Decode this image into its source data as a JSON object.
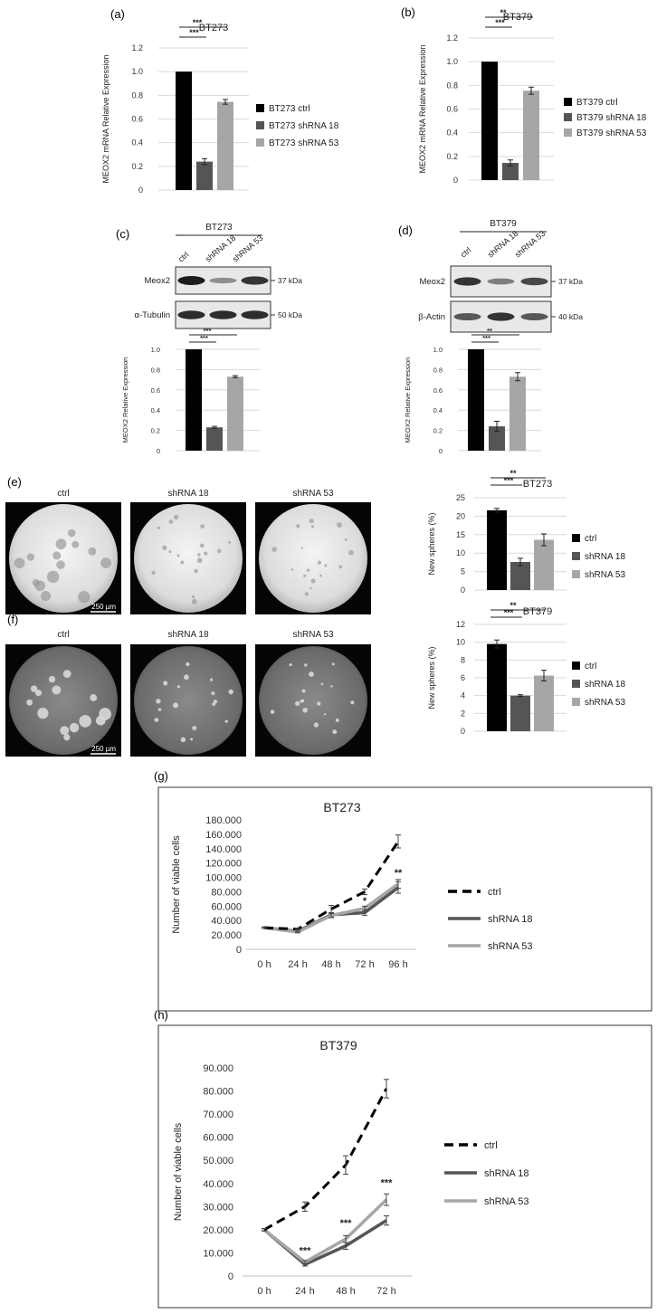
{
  "panels": {
    "a": "(a)",
    "b": "(b)",
    "c": "(c)",
    "d": "(d)",
    "e": "(e)",
    "f": "(f)",
    "g": "(g)",
    "h": "(h)"
  },
  "colors": {
    "ctrl": "#000000",
    "sh18": "#555555",
    "sh53": "#a6a6a6",
    "grid": "#d9d9d9",
    "axis": "#bfbfbf"
  },
  "blots": {
    "c": {
      "group": "BT273",
      "lanes": [
        "ctrl",
        "shRNA 18",
        "shRNA 53"
      ],
      "rows": [
        {
          "label": "Meox2",
          "kda": "37 kDa",
          "intensity": [
            1.0,
            0.25,
            0.85
          ]
        },
        {
          "label": "α-Tubulin",
          "kda": "50 kDa",
          "intensity": [
            0.9,
            0.9,
            0.9
          ]
        }
      ]
    },
    "d": {
      "group": "BT379",
      "lanes": [
        "ctrl",
        "shRNA 18",
        "shRNA 53"
      ],
      "rows": [
        {
          "label": "Meox2",
          "kda": "37 kDa",
          "intensity": [
            0.85,
            0.35,
            0.7
          ]
        },
        {
          "label": "β-Actin",
          "kda": "40 kDa",
          "intensity": [
            0.6,
            0.85,
            0.6
          ]
        }
      ]
    }
  },
  "images": {
    "e": {
      "labels": [
        "ctrl",
        "shRNA 18",
        "shRNA 53"
      ],
      "scale": "250 µm"
    },
    "f": {
      "labels": [
        "ctrl",
        "shRNA 18",
        "shRNA 53"
      ],
      "scale": "250 µm"
    }
  },
  "chart_data": [
    {
      "id": "a",
      "type": "bar",
      "title": "BT273",
      "ylabel": "MEOX2 mRNA Relative Expression",
      "ylim": [
        0,
        1.2
      ],
      "ticks": [
        "0",
        "0.2",
        "0.4",
        "0.6",
        "0.8",
        "1.0",
        "1.2"
      ],
      "categories": [
        "BT273 ctrl",
        "BT273 shRNA 18",
        "BT273 shRNA 53"
      ],
      "values": [
        1.0,
        0.24,
        0.745
      ],
      "errors": [
        0,
        0.025,
        0.02
      ],
      "legend": [
        "BT273 ctrl",
        "BT273 shRNA 18",
        "BT273 shRNA 53"
      ],
      "significance": [
        {
          "from": 0,
          "to": 1,
          "label": "***"
        },
        {
          "from": 0,
          "to": 2,
          "label": "***"
        }
      ]
    },
    {
      "id": "b",
      "type": "bar",
      "title": "BT379",
      "ylabel": "MEOX2 mRNA Relative Expression",
      "ylim": [
        0,
        1.2
      ],
      "ticks": [
        "0",
        "0.2",
        "0.4",
        "0.6",
        "0.8",
        "1.0",
        "1.2"
      ],
      "categories": [
        "BT379 ctrl",
        "BT379 shRNA 18",
        "BT379 shRNA 53"
      ],
      "values": [
        1.0,
        0.145,
        0.755
      ],
      "errors": [
        0,
        0.025,
        0.03
      ],
      "legend": [
        "BT379 ctrl",
        "BT379 shRNA 18",
        "BT379 shRNA 53"
      ],
      "significance": [
        {
          "from": 0,
          "to": 1,
          "label": "***"
        },
        {
          "from": 0,
          "to": 2,
          "label": "**"
        }
      ]
    },
    {
      "id": "c",
      "type": "bar",
      "title": "",
      "ylabel": "MEOX2 Relative Expression",
      "ylim": [
        0,
        1.0
      ],
      "ticks": [
        "0",
        "0.2",
        "0.4",
        "0.6",
        "0.8",
        "1.0"
      ],
      "categories": [
        "ctrl",
        "shRNA 18",
        "shRNA 53"
      ],
      "values": [
        1.0,
        0.23,
        0.73
      ],
      "errors": [
        0,
        0.01,
        0.01
      ],
      "legend": [],
      "significance": [
        {
          "from": 0,
          "to": 1,
          "label": "***"
        },
        {
          "from": 0,
          "to": 2,
          "label": "***"
        }
      ]
    },
    {
      "id": "d",
      "type": "bar",
      "title": "",
      "ylabel": "MEOX2 Relative Expression",
      "ylim": [
        0,
        1.0
      ],
      "ticks": [
        "0",
        "0.2",
        "0.4",
        "0.6",
        "0.8",
        "1.0"
      ],
      "categories": [
        "ctrl",
        "shRNA 18",
        "shRNA 53"
      ],
      "values": [
        1.0,
        0.24,
        0.73
      ],
      "errors": [
        0,
        0.05,
        0.04
      ],
      "legend": [],
      "significance": [
        {
          "from": 0,
          "to": 1,
          "label": "***"
        },
        {
          "from": 0,
          "to": 2,
          "label": "**"
        }
      ]
    },
    {
      "id": "e",
      "type": "bar",
      "title": "BT273",
      "ylabel": "New spheres  (%)",
      "ylim": [
        0,
        25
      ],
      "ticks": [
        "0",
        "5",
        "10",
        "15",
        "20",
        "25"
      ],
      "categories": [
        "ctrl",
        "shRNA 18",
        "shRNA 53"
      ],
      "values": [
        21.6,
        7.6,
        13.6
      ],
      "errors": [
        0.5,
        1.0,
        1.6
      ],
      "legend": [
        "ctrl",
        "shRNA 18",
        "shRNA 53"
      ],
      "significance": [
        {
          "from": 0,
          "to": 1,
          "label": "***"
        },
        {
          "from": 0,
          "to": 2,
          "label": "**"
        }
      ]
    },
    {
      "id": "f",
      "type": "bar",
      "title": "BT379",
      "ylabel": "New spheres (%)",
      "ylim": [
        0,
        12
      ],
      "ticks": [
        "0",
        "2",
        "4",
        "6",
        "8",
        "10",
        "12"
      ],
      "categories": [
        "ctrl",
        "shRNA 18",
        "shRNA 53"
      ],
      "values": [
        9.8,
        4.0,
        6.25
      ],
      "errors": [
        0.45,
        0.1,
        0.6
      ],
      "legend": [
        "ctrl",
        "shRNA 18",
        "shRNA 53"
      ],
      "significance": [
        {
          "from": 0,
          "to": 1,
          "label": "***"
        },
        {
          "from": 0,
          "to": 2,
          "label": "**"
        }
      ]
    },
    {
      "id": "g",
      "type": "line",
      "title": "BT273",
      "ylabel": "Number of viable cells",
      "ylim": [
        0,
        180000
      ],
      "ticks": [
        "0",
        "20.000",
        "40.000",
        "60.000",
        "80.000",
        "100.000",
        "120.000",
        "140.000",
        "160.000",
        "180.000"
      ],
      "x": [
        "0 h",
        "24 h",
        "48 h",
        "72 h",
        "96 h"
      ],
      "series": [
        {
          "name": "ctrl",
          "values": [
            30000,
            28000,
            56000,
            80000,
            150000
          ],
          "errors": [
            1000,
            1000,
            5000,
            4000,
            9000
          ]
        },
        {
          "name": "shRNA 18",
          "values": [
            30000,
            25000,
            48000,
            51000,
            86000
          ],
          "errors": [
            1000,
            1000,
            3000,
            4000,
            8000
          ]
        },
        {
          "name": "shRNA 53",
          "values": [
            30000,
            24000,
            47000,
            57000,
            91000
          ],
          "errors": [
            1000,
            1000,
            3000,
            3000,
            6000
          ]
        }
      ],
      "annotations": [
        {
          "x": 3,
          "y": 63000,
          "label": "*"
        },
        {
          "x": 4,
          "y": 102000,
          "label": "**"
        }
      ]
    },
    {
      "id": "h",
      "type": "line",
      "title": "BT379",
      "ylabel": "Number of viable cells",
      "ylim": [
        0,
        90000
      ],
      "ticks": [
        "0",
        "10.000",
        "20.000",
        "30.000",
        "40.000",
        "50.000",
        "60.000",
        "70.000",
        "80.000",
        "90.000"
      ],
      "x": [
        "0 h",
        "24 h",
        "48 h",
        "72 h"
      ],
      "series": [
        {
          "name": "ctrl",
          "values": [
            20000,
            30000,
            48000,
            81000
          ],
          "errors": [
            500,
            2000,
            4000,
            4000
          ]
        },
        {
          "name": "shRNA 18",
          "values": [
            20000,
            5000,
            13000,
            24000
          ],
          "errors": [
            500,
            700,
            1500,
            2000
          ]
        },
        {
          "name": "shRNA 53",
          "values": [
            20000,
            6000,
            16000,
            33000
          ],
          "errors": [
            500,
            700,
            1500,
            2500
          ]
        }
      ],
      "annotations": [
        {
          "x": 1,
          "y": 9500,
          "label": "***"
        },
        {
          "x": 2,
          "y": 21500,
          "label": "***"
        },
        {
          "x": 3,
          "y": 39000,
          "label": "***"
        }
      ]
    }
  ]
}
